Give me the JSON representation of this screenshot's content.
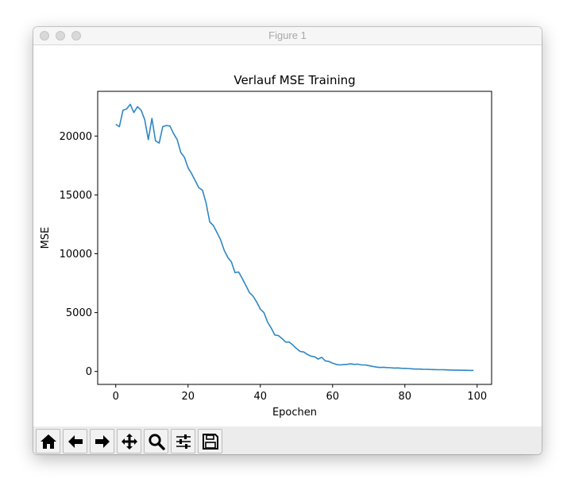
{
  "window": {
    "title": "Figure 1"
  },
  "toolbar": {
    "buttons": [
      {
        "name": "home-button",
        "icon": "home-icon"
      },
      {
        "name": "back-button",
        "icon": "arrow-left-icon"
      },
      {
        "name": "forward-button",
        "icon": "arrow-right-icon"
      },
      {
        "name": "pan-button",
        "icon": "move-icon"
      },
      {
        "name": "zoom-button",
        "icon": "magnifier-icon"
      },
      {
        "name": "configure-subplots-button",
        "icon": "sliders-icon"
      },
      {
        "name": "save-button",
        "icon": "floppy-disk-icon"
      }
    ]
  },
  "chart_data": {
    "type": "line",
    "title": "Verlauf MSE Training",
    "xlabel": "Epochen",
    "ylabel": "MSE",
    "xlim": [
      -5,
      104
    ],
    "ylim": [
      -1100,
      23800
    ],
    "xticks": [
      0,
      20,
      40,
      60,
      80,
      100
    ],
    "yticks": [
      0,
      5000,
      10000,
      15000,
      20000
    ],
    "grid": false,
    "color": "#2e87c3",
    "series": [
      {
        "x": [
          0,
          1,
          2,
          3,
          4,
          5,
          6,
          7,
          8,
          9,
          10,
          11,
          12,
          13,
          14,
          15,
          16,
          17,
          18,
          19,
          20,
          21,
          22,
          23,
          24,
          25,
          26,
          27,
          28,
          29,
          30,
          31,
          32,
          33,
          34,
          35,
          36,
          37,
          38,
          39,
          40,
          41,
          42,
          43,
          44,
          45,
          46,
          47,
          48,
          49,
          50,
          51,
          52,
          53,
          54,
          55,
          56,
          57,
          58,
          59,
          60,
          61,
          62,
          63,
          64,
          65,
          66,
          67,
          68,
          69,
          70,
          71,
          72,
          73,
          74,
          75,
          76,
          77,
          78,
          79,
          80,
          81,
          82,
          83,
          84,
          85,
          86,
          87,
          88,
          89,
          90,
          91,
          92,
          93,
          94,
          95,
          96,
          97,
          98,
          99
        ],
        "values": [
          21000,
          20800,
          22200,
          22300,
          22700,
          22000,
          22500,
          22200,
          21400,
          19700,
          21500,
          19600,
          19400,
          20800,
          20900,
          20850,
          20200,
          19700,
          18600,
          18200,
          17300,
          16800,
          16200,
          15600,
          15400,
          14300,
          12700,
          12400,
          11800,
          11200,
          10300,
          9700,
          9300,
          8400,
          8450,
          7900,
          7300,
          6700,
          6400,
          5900,
          5300,
          5000,
          4200,
          3700,
          3100,
          3050,
          2800,
          2500,
          2500,
          2250,
          1950,
          1700,
          1650,
          1450,
          1300,
          1250,
          1050,
          1200,
          900,
          850,
          700,
          600,
          550,
          580,
          600,
          650,
          600,
          620,
          550,
          550,
          500,
          430,
          380,
          340,
          360,
          330,
          320,
          290,
          300,
          270,
          260,
          250,
          220,
          200,
          200,
          190,
          180,
          170,
          160,
          150,
          150,
          140,
          130,
          120,
          110,
          110,
          100,
          100,
          90,
          90
        ]
      }
    ]
  }
}
